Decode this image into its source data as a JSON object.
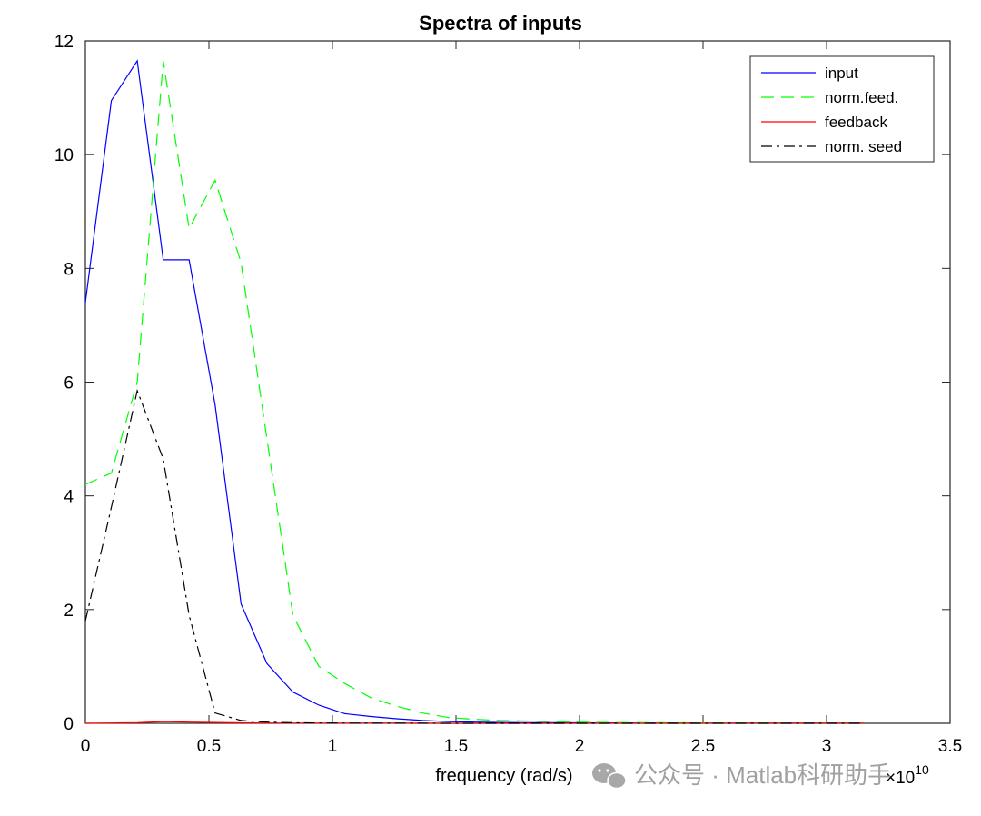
{
  "chart_data": {
    "type": "line",
    "title": "Spectra of inputs",
    "xlabel": "frequency (rad/s)",
    "ylabel": "",
    "x_exponent_label": "×10",
    "x_exponent_power": "10",
    "xlim": [
      0,
      3.5
    ],
    "ylim": [
      0,
      12
    ],
    "x_ticks": [
      0,
      0.5,
      1,
      1.5,
      2,
      2.5,
      3,
      3.5
    ],
    "x_tick_labels": [
      "0",
      "0.5",
      "1",
      "1.5",
      "2",
      "2.5",
      "3",
      "3.5"
    ],
    "y_ticks": [
      0,
      2,
      4,
      6,
      8,
      10,
      12
    ],
    "y_tick_labels": [
      "0",
      "2",
      "4",
      "6",
      "8",
      "10",
      "12"
    ],
    "grid": false,
    "legend_position": "top-right",
    "x": [
      0,
      0.105,
      0.21,
      0.315,
      0.42,
      0.525,
      0.63,
      0.735,
      0.84,
      0.945,
      1.05,
      1.155,
      1.26,
      1.365,
      1.47,
      1.575,
      1.68,
      1.785,
      1.89,
      1.995,
      2.1,
      2.205,
      2.31,
      2.415,
      2.52,
      2.625,
      2.73,
      2.835,
      2.94,
      3.045,
      3.15
    ],
    "series": [
      {
        "name": "input",
        "color": "#0000ff",
        "dash": "solid",
        "values": [
          7.4,
          10.95,
          11.65,
          8.15,
          8.15,
          5.6,
          2.1,
          1.05,
          0.55,
          0.32,
          0.17,
          0.12,
          0.08,
          0.05,
          0.03,
          0.02,
          0.015,
          0.01,
          0.01,
          0.008,
          0.006,
          0.005,
          0.004,
          0.003,
          0.003,
          0.002,
          0.002,
          0.002,
          0.001,
          0.001,
          0.001
        ]
      },
      {
        "name": "norm.feed.",
        "color": "#00ff00",
        "dash": "dashed",
        "values": [
          4.2,
          4.4,
          6.0,
          11.65,
          8.7,
          9.55,
          8.1,
          5.0,
          1.9,
          1.0,
          0.7,
          0.45,
          0.3,
          0.18,
          0.1,
          0.07,
          0.05,
          0.04,
          0.03,
          0.02,
          0.015,
          0.01,
          0.01,
          0.008,
          0.006,
          0.005,
          0.004,
          0.003,
          0.003,
          0.002,
          0.002
        ]
      },
      {
        "name": "feedback",
        "color": "#ff0000",
        "dash": "solid",
        "values": [
          0.0,
          0.005,
          0.01,
          0.03,
          0.02,
          0.015,
          0.008,
          0.005,
          0.003,
          0.002,
          0.001,
          0.001,
          0.001,
          0.0,
          0.0,
          0.0,
          0.0,
          0.0,
          0.0,
          0.0,
          0.0,
          0.0,
          0.0,
          0.0,
          0.0,
          0.0,
          0.0,
          0.0,
          0.0,
          0.0,
          0.0
        ]
      },
      {
        "name": "norm. seed",
        "color": "#000000",
        "dash": "dashdot",
        "values": [
          1.8,
          3.8,
          5.85,
          4.65,
          1.9,
          0.18,
          0.05,
          0.02,
          0.01,
          0.005,
          0.003,
          0.002,
          0.001,
          0.001,
          0.0,
          0.0,
          0.0,
          0.0,
          0.0,
          0.0,
          0.0,
          0.0,
          0.0,
          0.0,
          0.0,
          0.0,
          0.0,
          0.0,
          0.0,
          0.0,
          0.0
        ]
      }
    ]
  },
  "watermark": {
    "text": "公众号 · Matlab科研助手",
    "icon": "wechat-icon"
  }
}
